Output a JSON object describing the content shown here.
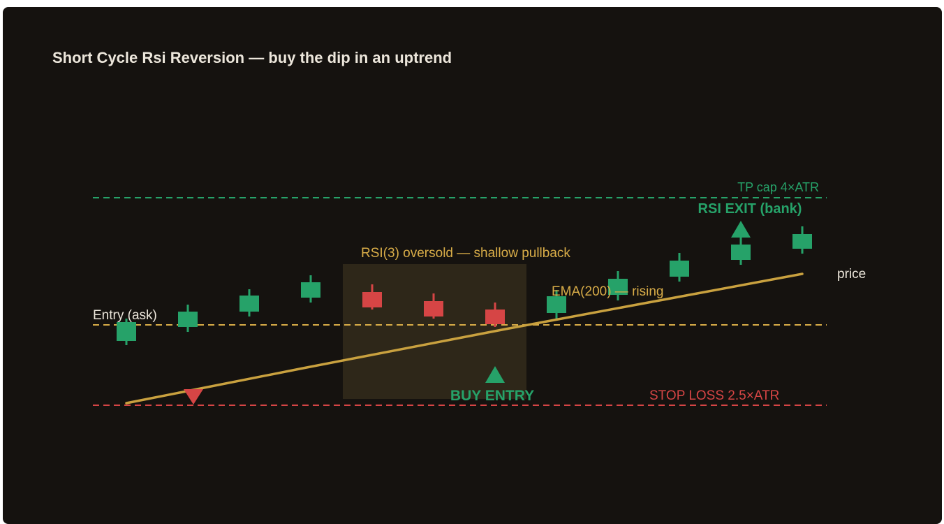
{
  "title": "Short Cycle Rsi Reversion — buy the dip in an uptrend",
  "colors": {
    "background": "#15120f",
    "bull": "#26a269",
    "bear": "#d64545",
    "ema": "#c9a13f",
    "entry_line": "#d9ad48",
    "zone": "#2e2719",
    "text_light": "#ece6db"
  },
  "levels": {
    "tp_label": "TP cap 4×ATR",
    "stop_label": "STOP LOSS 2.5×ATR",
    "entry_label": "Entry (ask)"
  },
  "annotations": {
    "zone_label": "RSI(3) oversold — shallow pullback",
    "ema_label": "EMA(200) — rising",
    "price_label": "price",
    "buy_label": "BUY ENTRY",
    "exit_label": "RSI EXIT (bank)"
  },
  "candles": [
    {
      "dir": "up"
    },
    {
      "dir": "up"
    },
    {
      "dir": "up"
    },
    {
      "dir": "up"
    },
    {
      "dir": "down"
    },
    {
      "dir": "down"
    },
    {
      "dir": "down"
    },
    {
      "dir": "up"
    },
    {
      "dir": "up"
    },
    {
      "dir": "up"
    },
    {
      "dir": "up"
    },
    {
      "dir": "up"
    }
  ],
  "markers": {
    "buy_icon": "triangle-up-icon",
    "exit_icon": "triangle-up-icon",
    "stop_icon": "triangle-down-icon"
  }
}
